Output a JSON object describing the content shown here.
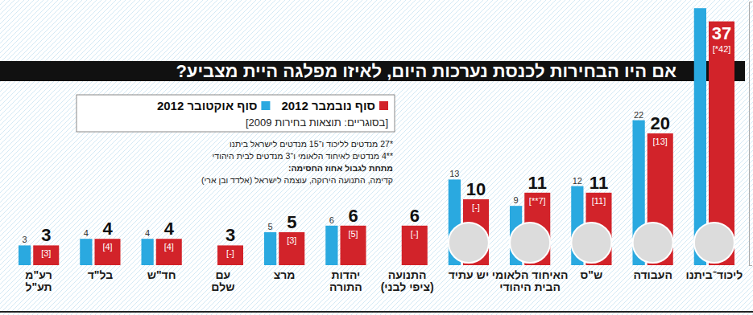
{
  "chart_data": {
    "type": "bar",
    "title": "אם היו הבחירות לכנסת נערכות היום, לאיזו מפלגה היית מצביע?",
    "subtitle": "[בסוגריים: תוצאות בחירות 2009]",
    "annotations": [
      "*27 מנדטים לליכוד ו־15 מנדטים לישראל ביתנו",
      "**4 מנדטים לאיחוד הלאומי ו־3 מנדטים לבית היהודי",
      "מתחת לגבול אחוז החסימה:",
      "קדימה, התנועה הירוקה, עוצמה לישראל (אלדד ובן ארי)"
    ],
    "categories": [
      "ליכוד־ביתנו",
      "העבודה",
      "ש\"ס",
      "האיחוד הלאומי\nהבית היהודי",
      "יש עתיד",
      "התנועה\n(ציפי לבני)",
      "יהדות\nהתורה",
      "מרצ",
      "עם\nשלם",
      "חד\"ש",
      "בל\"ד",
      "רע\"מ\nתע\"ל"
    ],
    "series": [
      {
        "name": "סוף נובמבר 2012",
        "color": "#d2232a",
        "values": [
          37,
          20,
          11,
          11,
          10,
          6,
          6,
          5,
          3,
          4,
          4,
          3
        ],
        "labels_2009": [
          "[*42]",
          "[13]",
          "[11]",
          "[**7]",
          "[-]",
          "[-]",
          "[5]",
          "[3]",
          "[-]",
          "[4]",
          "[4]",
          "[3]"
        ]
      },
      {
        "name": "סוף אוקטובר 2012",
        "color": "#2aa9e0",
        "values": [
          39,
          22,
          12,
          9,
          13,
          null,
          6,
          5,
          null,
          4,
          4,
          3
        ],
        "value_labels": [
          null,
          "22",
          "12",
          "9",
          "13",
          null,
          "6",
          "5",
          null,
          "4",
          "4",
          "3"
        ]
      }
    ],
    "ylim": [
      0,
      40
    ],
    "yticks": [
      0
    ],
    "tick_labels": false,
    "grid": false,
    "legend": "top-left",
    "data_labels": true
  }
}
